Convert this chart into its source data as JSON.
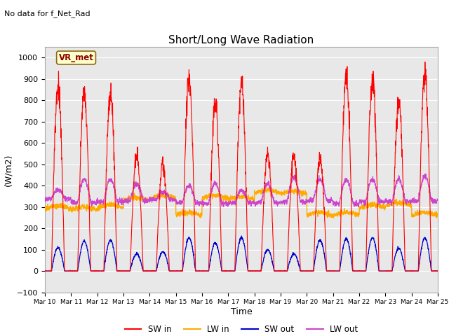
{
  "title": "Short/Long Wave Radiation",
  "ylabel": "(W/m2)",
  "xlabel": "Time",
  "ylim": [
    -100,
    1050
  ],
  "annotation": "No data for f_Net_Rad",
  "legend_label": "VR_met",
  "x_tick_labels": [
    "Mar 10",
    "Mar 11",
    "Mar 12",
    "Mar 13",
    "Mar 14",
    "Mar 15",
    "Mar 16",
    "Mar 17",
    "Mar 18",
    "Mar 19",
    "Mar 20",
    "Mar 21",
    "Mar 22",
    "Mar 23",
    "Mar 24",
    "Mar 25"
  ],
  "background_color": "#e8e8e8",
  "sw_in_color": "#ff0000",
  "lw_in_color": "#ffaa00",
  "sw_out_color": "#0000cc",
  "lw_out_color": "#cc44cc",
  "n_days": 15,
  "pts_per_day": 144,
  "sw_peaks": [
    860,
    830,
    840,
    540,
    500,
    910,
    780,
    880,
    550,
    540,
    530,
    910,
    900,
    810,
    920
  ],
  "sw_out_peaks": [
    110,
    140,
    145,
    80,
    90,
    155,
    130,
    155,
    100,
    80,
    145,
    150,
    155,
    105,
    155
  ],
  "lw_base_day": [
    290,
    285,
    295,
    330,
    340,
    260,
    340,
    335,
    365,
    360,
    260,
    260,
    295,
    305,
    260
  ],
  "lw_out_peaks_d": [
    380,
    430,
    430,
    410,
    370,
    400,
    410,
    380,
    410,
    440,
    430,
    430,
    430,
    430,
    445
  ],
  "lw_out_base": [
    340,
    320,
    325,
    330,
    335,
    320,
    315,
    320,
    320,
    325,
    330,
    315,
    325,
    325,
    330
  ]
}
